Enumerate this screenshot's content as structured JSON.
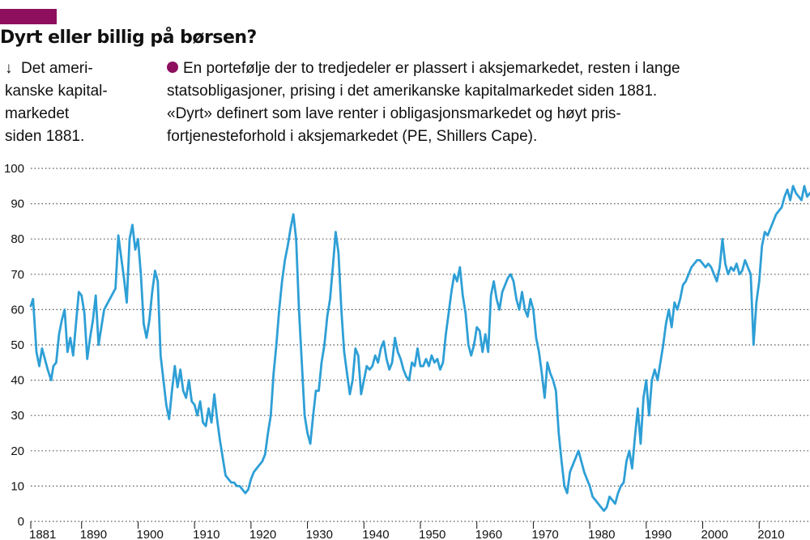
{
  "header": {
    "title": "Dyrt eller billig på børsen?",
    "side_note_lines": [
      "Det ameri-",
      "kanske kapital-",
      "markedet",
      "siden 1881."
    ],
    "description_lines": [
      "En portefølje der to tredjedeler er plassert i aksjemarkedet, resten i lange",
      "statsobligasjoner, prising i det amerikanske kapitalmarkedet siden 1881.",
      "«Dyrt» definert som lave renter i obligasjonsmarkedet og høyt pris-",
      "fortjenesteforhold i aksjemarkedet (PE, Shillers Cape)."
    ]
  },
  "icons": {
    "side_note": "arrow-down-icon",
    "description": "bullet-dot-icon"
  },
  "colors": {
    "tag_bar": "#8e0f5e",
    "bullet": "#8e0f5e",
    "line": "#2e9fd6",
    "grid": "#555555"
  },
  "chart_data": {
    "type": "line",
    "title": "Dyrt eller billig på børsen?",
    "xlabel": "",
    "ylabel": "",
    "xlim": [
      1881,
      2019
    ],
    "ylim": [
      0,
      100
    ],
    "y_ticks": [
      0,
      10,
      20,
      30,
      40,
      50,
      60,
      70,
      80,
      90,
      100
    ],
    "x_tick_values": [
      1881,
      1890,
      1900,
      1910,
      1920,
      1930,
      1940,
      1950,
      1960,
      1970,
      1980,
      1990,
      2000,
      2010
    ],
    "x_tick_labels": [
      "1881",
      "1890",
      "1900",
      "1910",
      "1920",
      "1930",
      "1940",
      "1950",
      "1960",
      "1970",
      "1980",
      "1990",
      "2000",
      "2010"
    ],
    "grid": "horizontal-dotted",
    "series": [
      {
        "x": [
          1881,
          1881.4,
          1882,
          1882.5,
          1883,
          1883.5,
          1884,
          1884.6,
          1885,
          1885.5,
          1886,
          1886.5,
          1887,
          1887.5,
          1888,
          1888.5,
          1889,
          1889.5,
          1890,
          1890.5,
          1891,
          1891.5,
          1892,
          1892.5,
          1893,
          1893.5,
          1894,
          1895,
          1896,
          1896.5,
          1897,
          1897.5,
          1898,
          1898.5,
          1899,
          1899.5,
          1900,
          1900.5,
          1901,
          1901.5,
          1902,
          1902.5,
          1903,
          1903.5,
          1904,
          1904.5,
          1905,
          1905.5,
          1906,
          1906.5,
          1907,
          1907.5,
          1908,
          1908.5,
          1909,
          1909.5,
          1910,
          1910.5,
          1911,
          1911.5,
          1912,
          1912.5,
          1913,
          1913.5,
          1914,
          1914.5,
          1915,
          1915.5,
          1916,
          1916.5,
          1917,
          1917.5,
          1918,
          1918.5,
          1919,
          1919.5,
          1920,
          1920.5,
          1921,
          1921.5,
          1922,
          1922.5,
          1923,
          1923.5,
          1924,
          1924.5,
          1925,
          1925.5,
          1926,
          1926.5,
          1927,
          1927.5,
          1928,
          1928.5,
          1929,
          1929.5,
          1930,
          1930.5,
          1931,
          1931.5,
          1932,
          1932.5,
          1933,
          1933.5,
          1934,
          1934.5,
          1935,
          1935.5,
          1936,
          1936.5,
          1937,
          1937.5,
          1938,
          1938.5,
          1939,
          1939.5,
          1940,
          1940.5,
          1941,
          1941.5,
          1942,
          1942.5,
          1943,
          1943.5,
          1944,
          1944.5,
          1945,
          1945.5,
          1946,
          1946.5,
          1947,
          1947.5,
          1948,
          1948.5,
          1949,
          1949.5,
          1950,
          1950.5,
          1951,
          1951.5,
          1952,
          1952.5,
          1953,
          1953.5,
          1954,
          1954.5,
          1955,
          1955.5,
          1956,
          1956.5,
          1957,
          1957.5,
          1958,
          1958.5,
          1959,
          1959.5,
          1960,
          1960.5,
          1961,
          1961.5,
          1962,
          1962.5,
          1963,
          1963.5,
          1964,
          1964.5,
          1965,
          1965.5,
          1966,
          1966.5,
          1967,
          1967.5,
          1968,
          1968.5,
          1969,
          1969.5,
          1970,
          1970.5,
          1971,
          1971.5,
          1972,
          1972.5,
          1973,
          1973.5,
          1974,
          1974.5,
          1975,
          1975.5,
          1976,
          1976.5,
          1977,
          1977.5,
          1978,
          1978.5,
          1979,
          1979.5,
          1980,
          1980.5,
          1981,
          1981.5,
          1982,
          1982.5,
          1983,
          1983.5,
          1984,
          1984.5,
          1985,
          1985.5,
          1986,
          1986.5,
          1987,
          1987.5,
          1988,
          1988.5,
          1989,
          1989.5,
          1990,
          1990.5,
          1991,
          1991.5,
          1992,
          1992.5,
          1993,
          1993.5,
          1994,
          1994.5,
          1995,
          1995.5,
          1996,
          1996.5,
          1997,
          1997.5,
          1998,
          1998.5,
          1999,
          1999.5,
          2000,
          2000.5,
          2001,
          2001.5,
          2002,
          2002.5,
          2003,
          2003.5,
          2004,
          2004.5,
          2005,
          2005.5,
          2006,
          2006.5,
          2007,
          2007.5,
          2008,
          2008.5,
          2009,
          2009.5,
          2010,
          2010.5,
          2011,
          2011.5,
          2012,
          2012.5,
          2013,
          2013.5,
          2014,
          2014.5,
          2015,
          2015.5,
          2016,
          2016.5,
          2017,
          2017.5,
          2018,
          2018.5,
          2019
        ],
        "y": [
          61,
          63,
          48,
          44,
          49,
          46,
          43,
          40,
          44,
          45,
          53,
          57,
          60,
          48,
          52,
          47,
          56,
          65,
          64,
          59,
          46,
          52,
          57,
          64,
          50,
          55,
          60,
          63,
          66,
          81,
          75,
          69,
          62,
          80,
          84,
          77,
          80,
          70,
          56,
          52,
          57,
          65,
          71,
          68,
          47,
          40,
          33,
          29,
          37,
          44,
          38,
          43,
          37,
          35,
          40,
          34,
          33,
          30,
          34,
          28,
          27,
          32,
          28,
          36,
          29,
          23,
          18,
          13,
          12,
          11,
          11,
          10,
          10,
          9,
          8,
          9,
          12,
          14,
          15,
          16,
          17,
          19,
          25,
          30,
          42,
          50,
          60,
          68,
          74,
          78,
          83,
          87,
          80,
          60,
          45,
          30,
          25,
          22,
          30,
          37,
          37,
          45,
          50,
          58,
          63,
          72,
          82,
          76,
          60,
          48,
          42,
          36,
          40,
          49,
          47,
          36,
          40,
          44,
          43,
          44,
          47,
          45,
          49,
          51,
          46,
          43,
          45,
          52,
          48,
          46,
          43,
          41,
          40,
          45,
          44,
          49,
          44,
          44,
          46,
          44,
          47,
          45,
          46,
          43,
          45,
          53,
          59,
          65,
          70,
          68,
          72,
          64,
          59,
          50,
          47,
          50,
          55,
          54,
          48,
          53,
          48,
          64,
          68,
          63,
          60,
          65,
          67,
          69,
          70,
          68,
          63,
          60,
          65,
          60,
          58,
          63,
          60,
          52,
          48,
          42,
          35,
          45,
          42,
          40,
          37,
          25,
          17,
          10,
          8,
          14,
          16,
          18,
          20,
          17,
          14,
          12,
          10,
          7,
          6,
          5,
          4,
          3,
          4,
          7,
          6,
          5,
          8,
          10,
          11,
          17,
          20,
          15,
          24,
          32,
          22,
          35,
          40,
          30,
          40,
          43,
          40,
          45,
          50,
          56,
          60,
          55,
          62,
          60,
          63,
          67,
          68,
          70,
          72,
          73,
          74,
          74,
          73,
          72,
          73,
          72,
          70,
          68,
          72,
          80,
          73,
          70,
          72,
          71,
          73,
          70,
          71,
          74,
          72,
          70,
          50,
          62,
          68,
          78,
          82,
          81,
          83,
          85,
          87,
          88,
          89,
          92,
          94,
          91,
          95,
          93,
          92,
          91,
          95,
          92,
          93
        ]
      }
    ]
  }
}
